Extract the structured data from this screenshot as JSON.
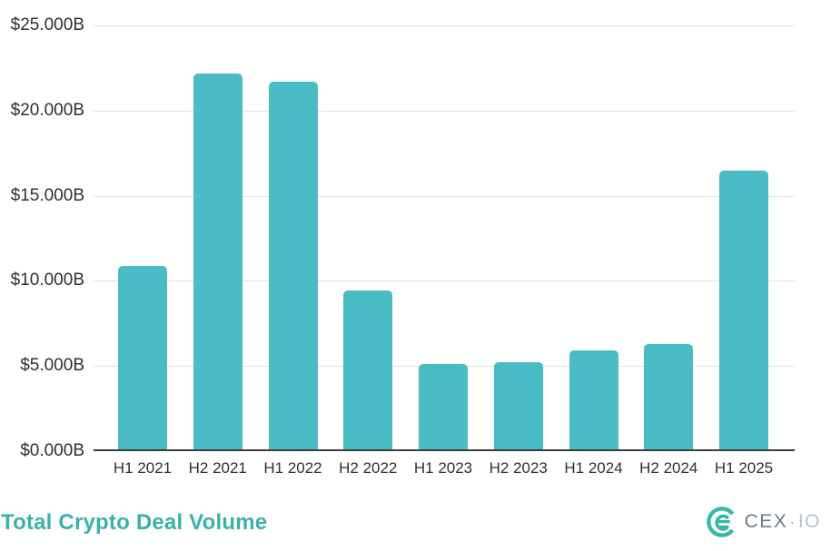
{
  "chart_data": {
    "type": "bar",
    "title": "Total Crypto Deal Volume",
    "categories": [
      "H1 2021",
      "H2 2021",
      "H1 2022",
      "H2 2022",
      "H1 2023",
      "H2 2023",
      "H1 2024",
      "H2 2024",
      "H1 2025"
    ],
    "values": [
      10.9,
      22.2,
      21.7,
      9.45,
      5.1,
      5.25,
      5.9,
      6.3,
      16.45
    ],
    "xlabel": "",
    "ylabel": "",
    "ylim": [
      0,
      25
    ],
    "yticks": [
      0,
      5,
      10,
      15,
      20,
      25
    ],
    "ytick_labels": [
      "$0.000B",
      "$5.000B",
      "$10.000B",
      "$15.000B",
      "$20.000B",
      "$25.000B"
    ],
    "grid": true,
    "legend_position": "none",
    "bar_color": "#49bcc6"
  },
  "footer": {
    "title": "Total Crypto Deal Volume",
    "title_color": "#38b2a8",
    "logo": {
      "text_primary": "CEX",
      "separator": "·",
      "text_secondary": "IO",
      "icon_color": "#35b8a5"
    }
  },
  "colors": {
    "background": "#ffffff",
    "bar": "#49bcc6",
    "gridline": "#e2e2e2",
    "axis_line": "#3d3d3d",
    "tick_text": "#2f2f2f"
  }
}
